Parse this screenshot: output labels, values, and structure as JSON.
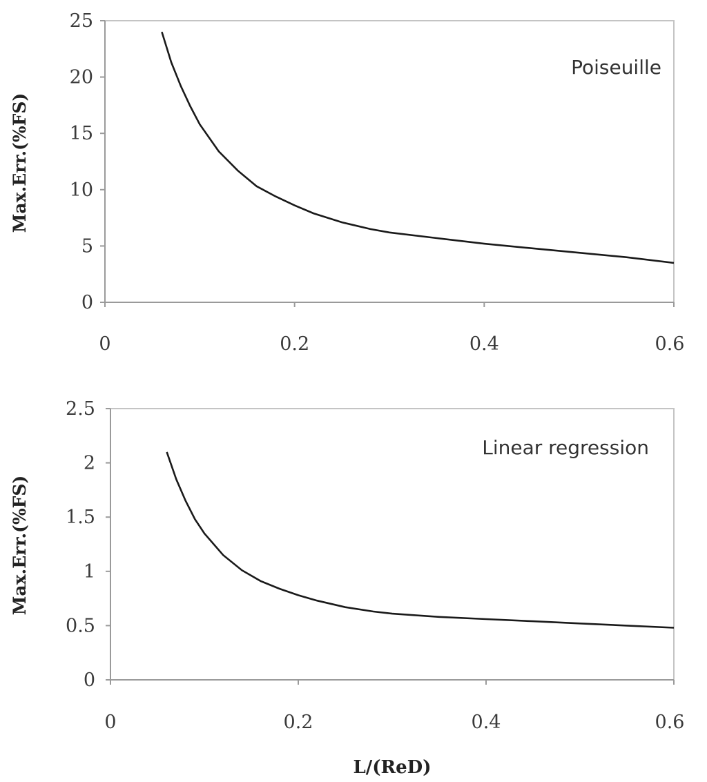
{
  "chart_data": [
    {
      "type": "line",
      "annotation": "Poiseuille",
      "ylabel": "Max.Err.(%FS)",
      "xlabel": "",
      "xlim": [
        0,
        0.6
      ],
      "ylim": [
        0,
        25
      ],
      "xticks": [
        "0",
        "0.2",
        "0.4",
        "0.6"
      ],
      "yticks": [
        "0",
        "5",
        "10",
        "15",
        "20",
        "25"
      ],
      "grid": false,
      "series": [
        {
          "x": [
            0.06,
            0.07,
            0.08,
            0.09,
            0.1,
            0.12,
            0.14,
            0.16,
            0.18,
            0.2,
            0.22,
            0.25,
            0.28,
            0.3,
            0.35,
            0.4,
            0.45,
            0.5,
            0.55,
            0.6
          ],
          "y": [
            24.0,
            21.3,
            19.2,
            17.4,
            15.8,
            13.4,
            11.7,
            10.3,
            9.4,
            8.6,
            7.9,
            7.1,
            6.5,
            6.2,
            5.7,
            5.2,
            4.8,
            4.4,
            4.0,
            3.5
          ]
        }
      ]
    },
    {
      "type": "line",
      "annotation": "Linear regression",
      "ylabel": "Max.Err.(%FS)",
      "xlabel": "L/(ReD)",
      "xlim": [
        0,
        0.6
      ],
      "ylim": [
        0,
        2.5
      ],
      "xticks": [
        "0",
        "0.2",
        "0.4",
        "0.6"
      ],
      "yticks": [
        "0",
        "0.5",
        "1",
        "1.5",
        "2",
        "2.5"
      ],
      "grid": false,
      "series": [
        {
          "x": [
            0.06,
            0.07,
            0.08,
            0.09,
            0.1,
            0.12,
            0.14,
            0.16,
            0.18,
            0.2,
            0.22,
            0.25,
            0.28,
            0.3,
            0.35,
            0.4,
            0.45,
            0.5,
            0.55,
            0.6
          ],
          "y": [
            2.1,
            1.85,
            1.65,
            1.48,
            1.35,
            1.15,
            1.01,
            0.91,
            0.84,
            0.78,
            0.73,
            0.67,
            0.63,
            0.61,
            0.58,
            0.56,
            0.54,
            0.52,
            0.5,
            0.48
          ]
        }
      ]
    }
  ]
}
